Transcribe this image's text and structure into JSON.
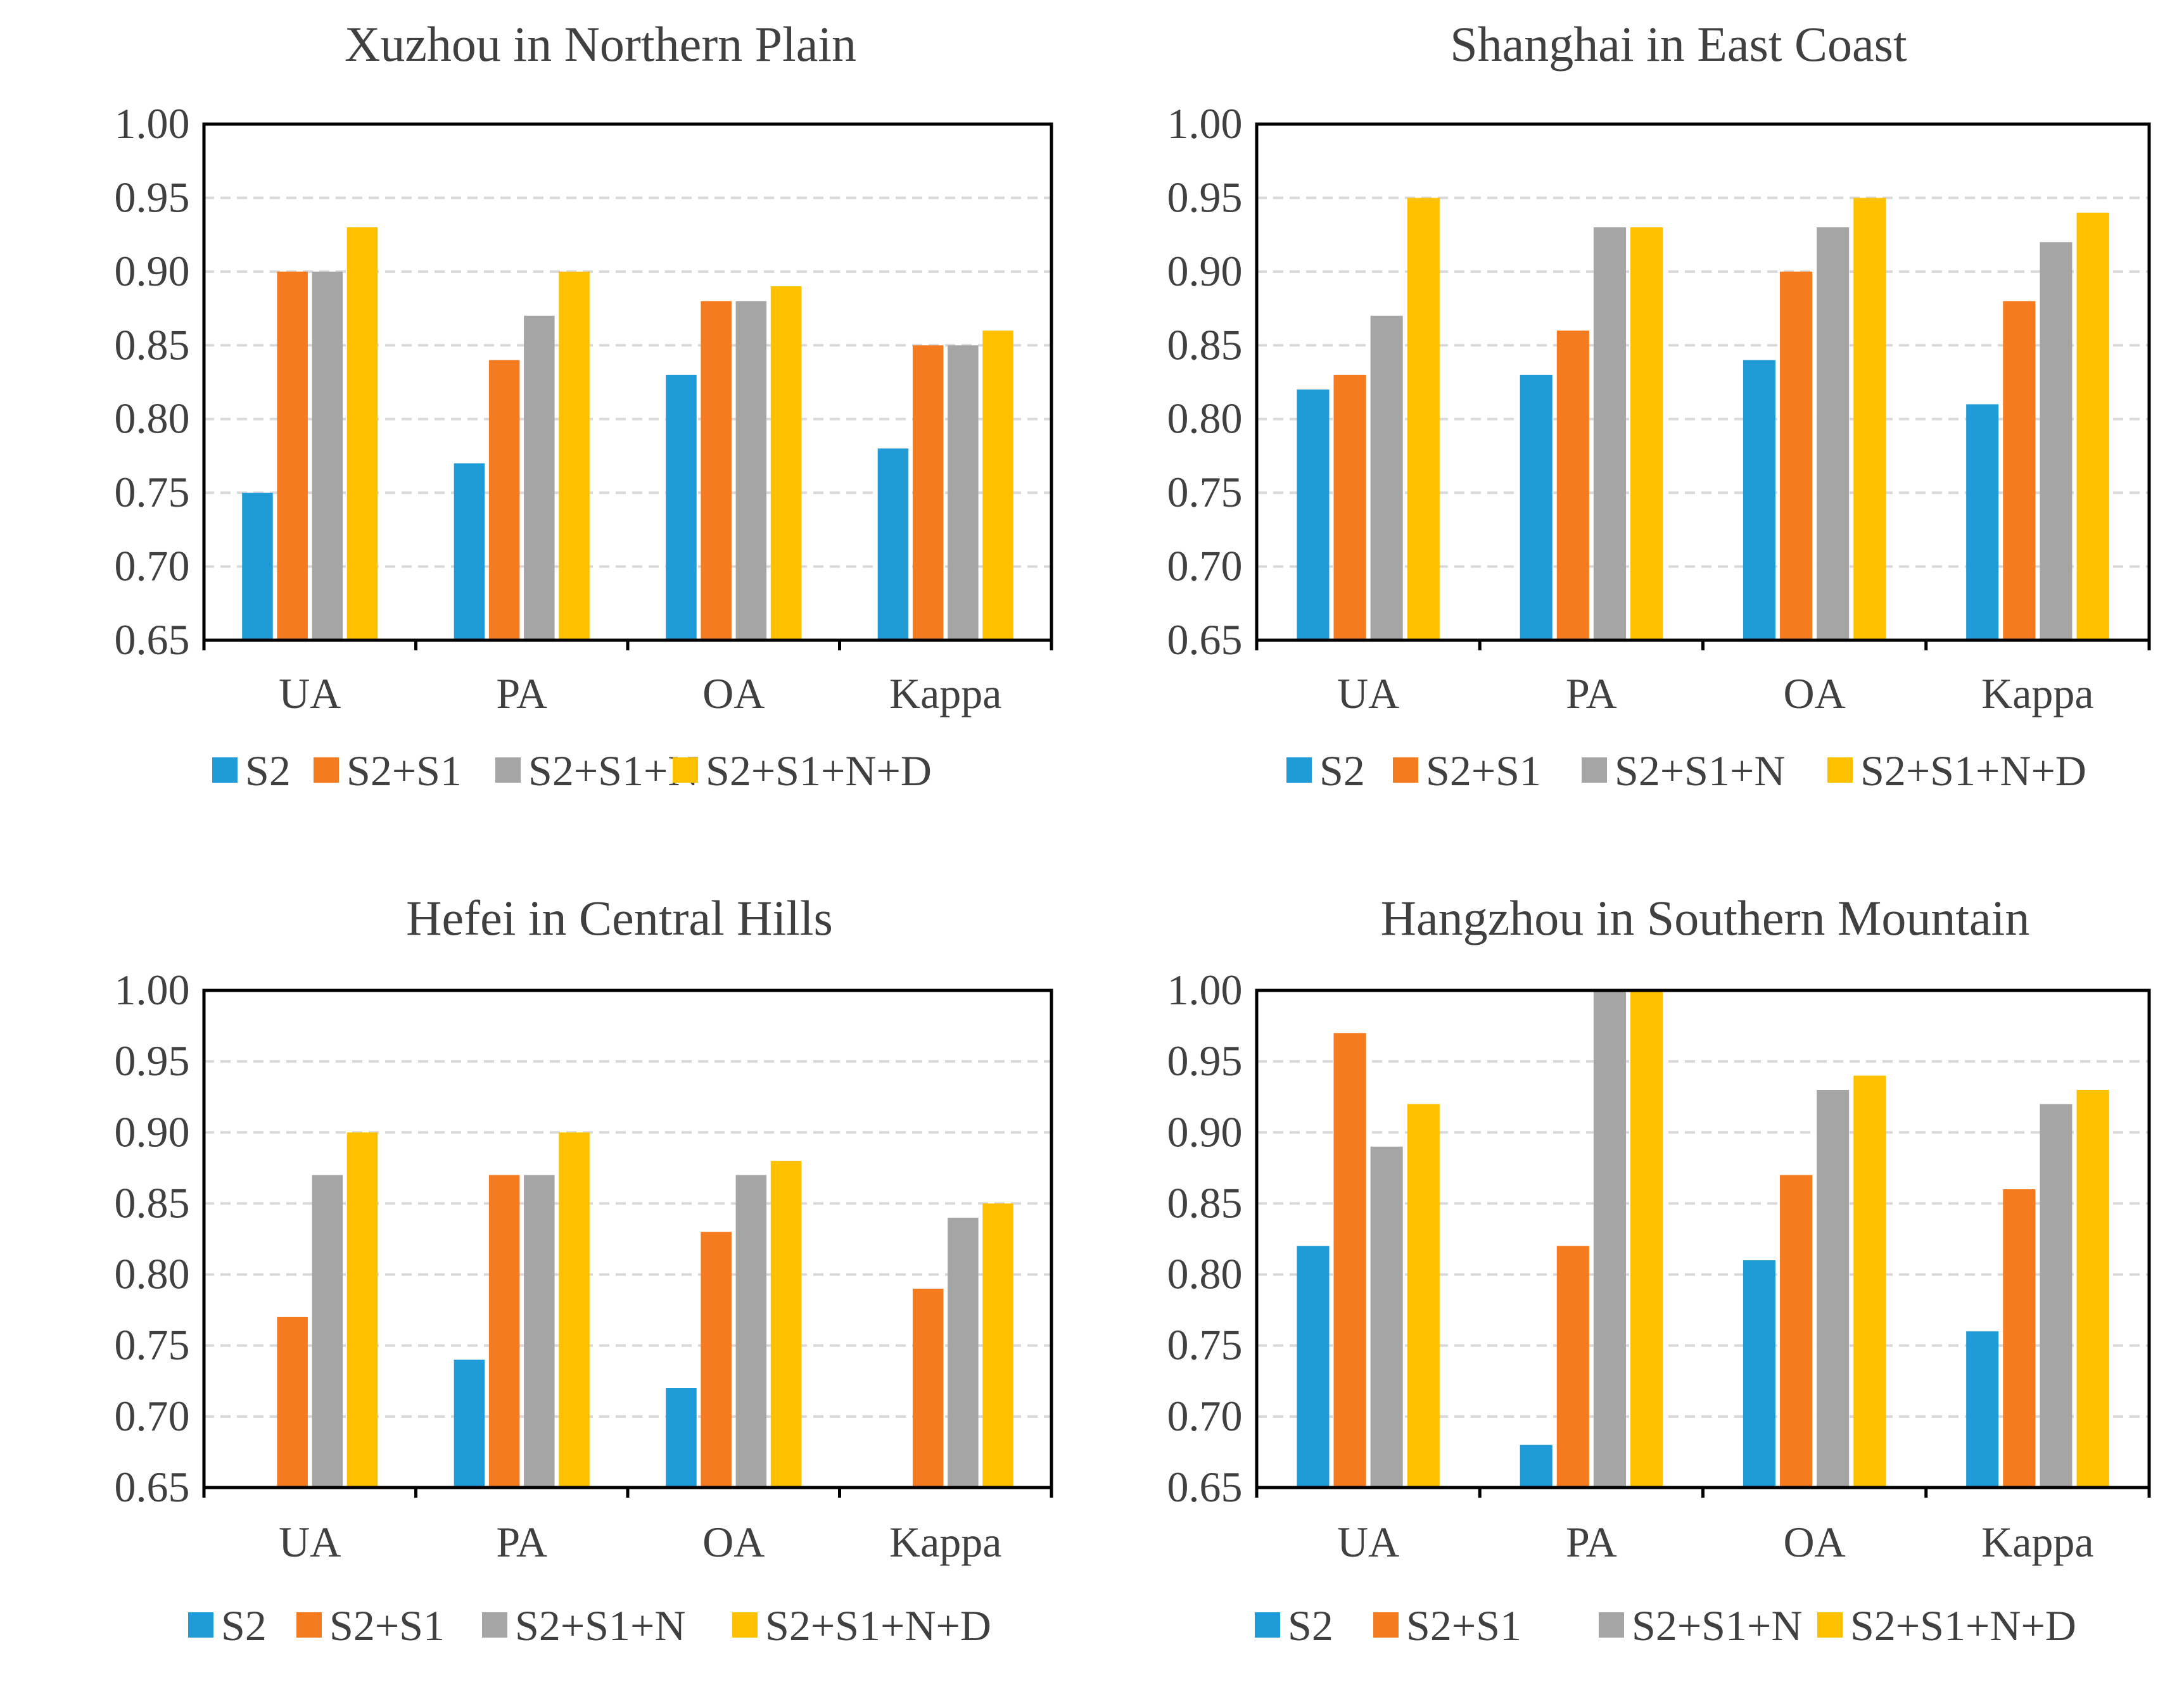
{
  "chart_data": [
    {
      "type": "bar",
      "title": "Xuzhou in Northern Plain",
      "categories": [
        "UA",
        "PA",
        "OA",
        "Kappa"
      ],
      "ylim": [
        0.65,
        1.0
      ],
      "yticks": [
        "0.65",
        "0.70",
        "0.75",
        "0.80",
        "0.85",
        "0.90",
        "0.95",
        "1.00"
      ],
      "grid": true,
      "legend_position": "bottom",
      "series": [
        {
          "name": "S2",
          "color": "#1f9bd7",
          "values": [
            0.75,
            0.77,
            0.83,
            0.78
          ]
        },
        {
          "name": "S2+S1",
          "color": "#f47b20",
          "values": [
            0.9,
            0.84,
            0.88,
            0.85
          ]
        },
        {
          "name": "S2+S1+N",
          "color": "#a5a5a5",
          "values": [
            0.9,
            0.87,
            0.88,
            0.85
          ]
        },
        {
          "name": "S2+S1+N+D",
          "color": "#ffc000",
          "values": [
            0.93,
            0.9,
            0.89,
            0.86
          ]
        }
      ]
    },
    {
      "type": "bar",
      "title": "Shanghai in East Coast",
      "categories": [
        "UA",
        "PA",
        "OA",
        "Kappa"
      ],
      "ylim": [
        0.65,
        1.0
      ],
      "yticks": [
        "0.65",
        "0.70",
        "0.75",
        "0.80",
        "0.85",
        "0.90",
        "0.95",
        "1.00"
      ],
      "grid": true,
      "legend_position": "bottom",
      "series": [
        {
          "name": "S2",
          "color": "#1f9bd7",
          "values": [
            0.82,
            0.83,
            0.84,
            0.81
          ]
        },
        {
          "name": "S2+S1",
          "color": "#f47b20",
          "values": [
            0.83,
            0.86,
            0.9,
            0.88
          ]
        },
        {
          "name": "S2+S1+N",
          "color": "#a5a5a5",
          "values": [
            0.87,
            0.93,
            0.93,
            0.92
          ]
        },
        {
          "name": "S2+S1+N+D",
          "color": "#ffc000",
          "values": [
            0.95,
            0.93,
            0.95,
            0.94
          ]
        }
      ]
    },
    {
      "type": "bar",
      "title": "Hefei in Central Hills",
      "categories": [
        "UA",
        "PA",
        "OA",
        "Kappa"
      ],
      "ylim": [
        0.65,
        1.0
      ],
      "yticks": [
        "0.65",
        "0.70",
        "0.75",
        "0.80",
        "0.85",
        "0.90",
        "0.95",
        "1.00"
      ],
      "grid": true,
      "legend_position": "bottom",
      "series": [
        {
          "name": "S2",
          "color": "#1f9bd7",
          "values": [
            0.65,
            0.74,
            0.72,
            0.65
          ]
        },
        {
          "name": "S2+S1",
          "color": "#f47b20",
          "values": [
            0.77,
            0.87,
            0.83,
            0.79
          ]
        },
        {
          "name": "S2+S1+N",
          "color": "#a5a5a5",
          "values": [
            0.87,
            0.87,
            0.87,
            0.84
          ]
        },
        {
          "name": "S2+S1+N+D",
          "color": "#ffc000",
          "values": [
            0.9,
            0.9,
            0.88,
            0.85
          ]
        }
      ]
    },
    {
      "type": "bar",
      "title": "Hangzhou in Southern Mountain",
      "categories": [
        "UA",
        "PA",
        "OA",
        "Kappa"
      ],
      "ylim": [
        0.65,
        1.0
      ],
      "yticks": [
        "0.65",
        "0.70",
        "0.75",
        "0.80",
        "0.85",
        "0.90",
        "0.95",
        "1.00"
      ],
      "grid": true,
      "legend_position": "bottom",
      "series": [
        {
          "name": "S2",
          "color": "#1f9bd7",
          "values": [
            0.82,
            0.68,
            0.81,
            0.76
          ]
        },
        {
          "name": "S2+S1",
          "color": "#f47b20",
          "values": [
            0.97,
            0.82,
            0.87,
            0.86
          ]
        },
        {
          "name": "S2+S1+N",
          "color": "#a5a5a5",
          "values": [
            0.89,
            1.0,
            0.93,
            0.92
          ]
        },
        {
          "name": "S2+S1+N+D",
          "color": "#ffc000",
          "values": [
            0.92,
            1.0,
            0.94,
            0.93
          ]
        }
      ]
    }
  ]
}
